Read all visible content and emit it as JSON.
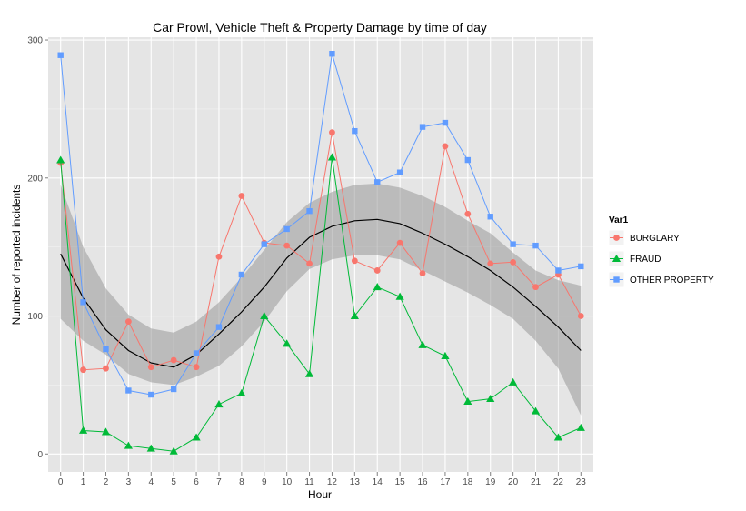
{
  "chart_data": {
    "type": "line",
    "title": "Car Prowl, Vehicle Theft & Property Damage by time of day",
    "xlabel": "Hour",
    "ylabel": "Number of reported incidents",
    "x": [
      0,
      1,
      2,
      3,
      4,
      5,
      6,
      7,
      8,
      9,
      10,
      11,
      12,
      13,
      14,
      15,
      16,
      17,
      18,
      19,
      20,
      21,
      22,
      23
    ],
    "x_tick_labels": [
      "0",
      "1",
      "2",
      "3",
      "4",
      "5",
      "6",
      "7",
      "8",
      "9",
      "10",
      "11",
      "12",
      "13",
      "14",
      "15",
      "16",
      "17",
      "18",
      "19",
      "20",
      "21",
      "22",
      "23"
    ],
    "y_tick_labels": [
      "0",
      "100",
      "200",
      "300"
    ],
    "y_ticks": [
      0,
      100,
      200,
      300
    ],
    "ylim": [
      -13,
      302
    ],
    "xlim": [
      -0.55,
      23.55
    ],
    "grid": true,
    "legend": {
      "title": "Var1",
      "placement": "right"
    },
    "series": [
      {
        "name": "BURGLARY",
        "color": "#F8766D",
        "marker": "circle",
        "values": [
          211,
          61,
          62,
          96,
          63,
          68,
          63,
          143,
          187,
          153,
          151,
          138,
          233,
          140,
          133,
          153,
          131,
          223,
          174,
          138,
          139,
          121,
          130,
          100
        ]
      },
      {
        "name": "FRAUD",
        "color": "#00BA38",
        "marker": "triangle",
        "values": [
          213,
          17,
          16,
          6,
          4,
          2,
          12,
          36,
          44,
          100,
          80,
          58,
          215,
          100,
          121,
          114,
          79,
          71,
          38,
          40,
          52,
          31,
          12,
          19
        ]
      },
      {
        "name": "OTHER PROPERTY",
        "color": "#619CFF",
        "marker": "square",
        "values": [
          289,
          110,
          76,
          46,
          43,
          47,
          73,
          92,
          130,
          152,
          163,
          176,
          290,
          234,
          197,
          204,
          237,
          240,
          213,
          172,
          152,
          151,
          133,
          136
        ]
      }
    ],
    "smooth": {
      "color": "#000000",
      "band_color": "#999999",
      "fit": [
        145,
        113,
        90,
        75,
        66,
        63,
        72,
        87,
        103,
        121,
        142,
        157,
        165,
        169,
        170,
        167,
        160,
        152,
        143,
        133,
        121,
        107,
        92,
        75
      ],
      "lower": [
        98,
        82,
        72,
        58,
        52,
        50,
        56,
        64,
        78,
        96,
        118,
        134,
        141,
        144,
        144,
        141,
        133,
        125,
        117,
        108,
        98,
        82,
        62,
        28
      ],
      "upper": [
        195,
        150,
        120,
        101,
        91,
        88,
        96,
        110,
        128,
        148,
        168,
        182,
        190,
        195,
        196,
        193,
        187,
        179,
        169,
        160,
        146,
        133,
        126,
        122
      ]
    }
  }
}
